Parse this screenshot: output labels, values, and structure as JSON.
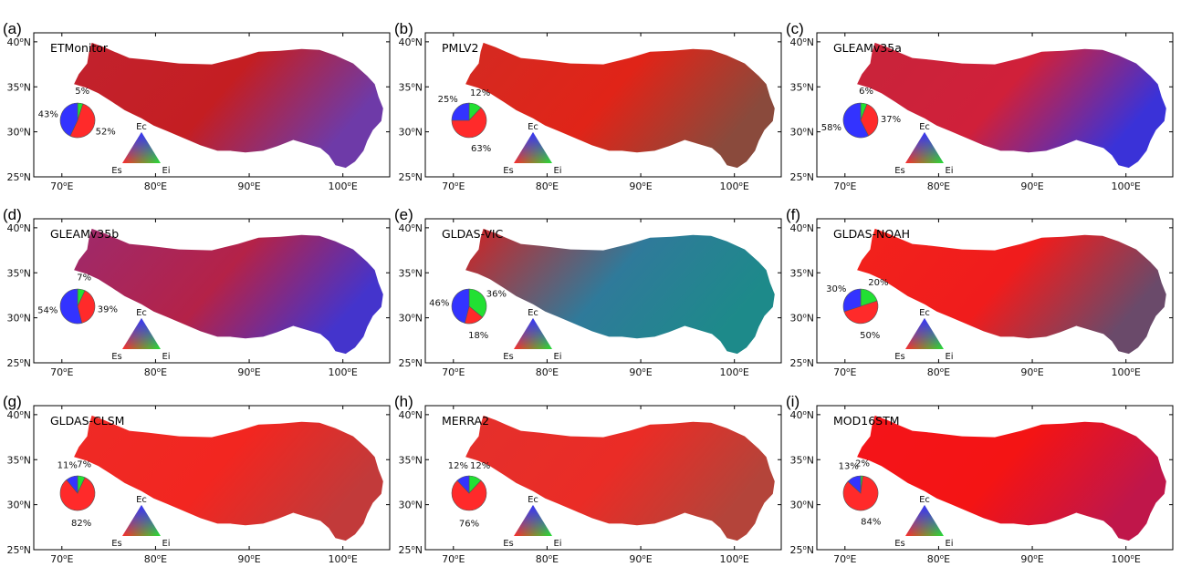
{
  "figure": {
    "axis": {
      "lon_range": [
        67,
        105
      ],
      "lat_range": [
        25,
        41
      ],
      "x_ticks": [
        70,
        80,
        90,
        100
      ],
      "y_ticks": [
        25,
        30,
        35,
        40
      ],
      "x_tick_labels": [
        "70°E",
        "80°E",
        "90°E",
        "100°E"
      ],
      "y_tick_labels": [
        "25°N",
        "30°N",
        "35°N",
        "40°N"
      ]
    },
    "legend_triangle": {
      "top": "Ec",
      "left": "Es",
      "right": "Ei"
    }
  },
  "colors": {
    "Es": "#ff2a2a",
    "Ei": "#22e033",
    "Ec": "#3333ff",
    "frame": "#000000"
  },
  "chart_data": [
    {
      "type": "pie",
      "panel": "(a)",
      "title": "ETMonitor",
      "map_tint": [
        "#c2222e",
        "#6e3aa8",
        "#c41e22"
      ],
      "slices": [
        {
          "label": "Es",
          "value": 52,
          "text": "52%"
        },
        {
          "label": "Ec",
          "value": 43,
          "text": "43%"
        },
        {
          "label": "Ei",
          "value": 5,
          "text": "5%"
        }
      ]
    },
    {
      "type": "pie",
      "panel": "(b)",
      "title": "PMLV2",
      "map_tint": [
        "#d42a22",
        "#8a4a3c",
        "#e02418"
      ],
      "slices": [
        {
          "label": "Es",
          "value": 63,
          "text": "63%"
        },
        {
          "label": "Ec",
          "value": 25,
          "text": "25%"
        },
        {
          "label": "Ei",
          "value": 12,
          "text": "12%"
        }
      ]
    },
    {
      "type": "pie",
      "panel": "(c)",
      "title": "GLEAMv35a",
      "map_tint": [
        "#c8243a",
        "#3a32d8",
        "#d0203a"
      ],
      "slices": [
        {
          "label": "Es",
          "value": 37,
          "text": "37%"
        },
        {
          "label": "Ec",
          "value": 58,
          "text": "58%"
        },
        {
          "label": "Ei",
          "value": 6,
          "text": "6%"
        }
      ]
    },
    {
      "type": "pie",
      "panel": "(d)",
      "title": "GLEAMv35b",
      "map_tint": [
        "#9e2a6c",
        "#4434cc",
        "#b42248"
      ],
      "slices": [
        {
          "label": "Es",
          "value": 39,
          "text": "39%"
        },
        {
          "label": "Ec",
          "value": 54,
          "text": "54%"
        },
        {
          "label": "Ei",
          "value": 7,
          "text": "7%"
        }
      ]
    },
    {
      "type": "pie",
      "panel": "(e)",
      "title": "GLDAS-VIC",
      "map_tint": [
        "#d22222",
        "#1d8a8a",
        "#2f7a9a"
      ],
      "slices": [
        {
          "label": "Es",
          "value": 18,
          "text": "18%"
        },
        {
          "label": "Ec",
          "value": 46,
          "text": "46%"
        },
        {
          "label": "Ei",
          "value": 36,
          "text": "36%"
        }
      ]
    },
    {
      "type": "pie",
      "panel": "(f)",
      "title": "GLDAS-NOAH",
      "map_tint": [
        "#f2221c",
        "#6a4a6a",
        "#f01c1c"
      ],
      "slices": [
        {
          "label": "Es",
          "value": 50,
          "text": "50%"
        },
        {
          "label": "Ec",
          "value": 30,
          "text": "30%"
        },
        {
          "label": "Ei",
          "value": 20,
          "text": "20%"
        }
      ]
    },
    {
      "type": "pie",
      "panel": "(g)",
      "title": "GLDAS-CLSM",
      "map_tint": [
        "#ee2a26",
        "#c23a3a",
        "#f22620"
      ],
      "slices": [
        {
          "label": "Es",
          "value": 82,
          "text": "82%"
        },
        {
          "label": "Ec",
          "value": 11,
          "text": "11%"
        },
        {
          "label": "Ei",
          "value": 7,
          "text": "7%"
        }
      ]
    },
    {
      "type": "pie",
      "panel": "(h)",
      "title": "MERRA2",
      "map_tint": [
        "#e4302c",
        "#b4443a",
        "#ea2c26"
      ],
      "slices": [
        {
          "label": "Es",
          "value": 76,
          "text": "76%"
        },
        {
          "label": "Ec",
          "value": 12,
          "text": "12%"
        },
        {
          "label": "Ei",
          "value": 12,
          "text": "12%"
        }
      ]
    },
    {
      "type": "pie",
      "panel": "(i)",
      "title": "MOD16STM",
      "map_tint": [
        "#f4141a",
        "#c0164a",
        "#f41414"
      ],
      "slices": [
        {
          "label": "Es",
          "value": 84,
          "text": "84%"
        },
        {
          "label": "Ec",
          "value": 13,
          "text": "13%"
        },
        {
          "label": "Ei",
          "value": 2,
          "text": "2%"
        }
      ]
    }
  ]
}
